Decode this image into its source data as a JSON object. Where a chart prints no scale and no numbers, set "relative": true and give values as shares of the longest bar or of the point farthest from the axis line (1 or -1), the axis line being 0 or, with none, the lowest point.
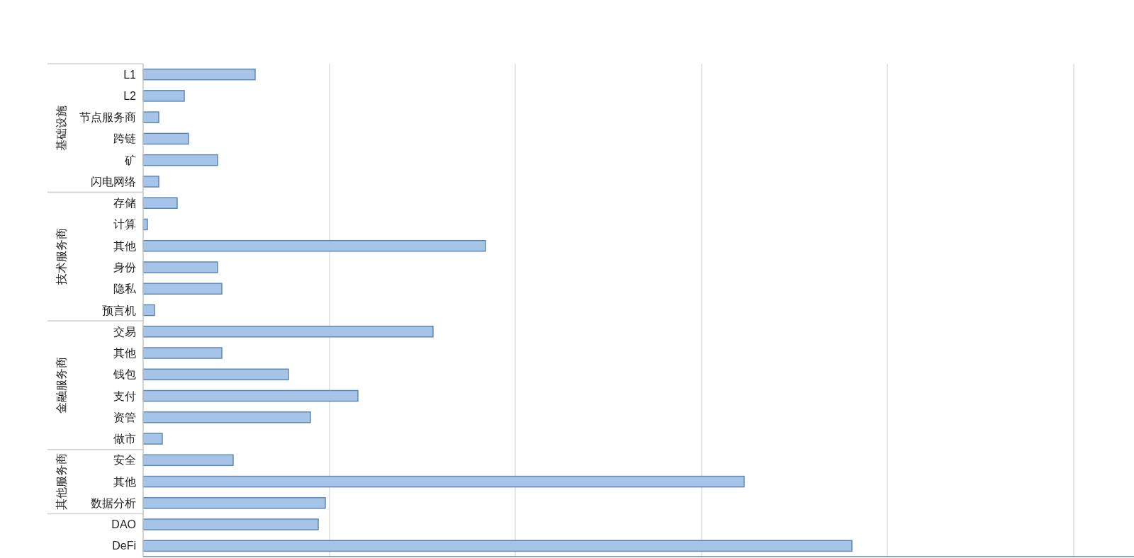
{
  "chart_data": {
    "type": "bar",
    "orientation": "horizontal",
    "relative": true,
    "stacked": true,
    "categories": [
      "L1",
      "L2",
      "节点服务商",
      "跨链",
      "矿",
      "闪电网络",
      "存储",
      "计算",
      "其他",
      "身份",
      "隐私",
      "预言机",
      "交易",
      "其他",
      "钱包",
      "支付",
      "资管",
      "做市",
      "安全",
      "其他",
      "数据分析",
      "DAO",
      "DeFi"
    ],
    "series": [
      {
        "color": "#a6c3e8",
        "values": [
          0.158,
          0.058,
          0.022,
          0.064,
          0.105,
          0.022,
          null,
          null,
          null,
          null,
          null,
          null,
          null,
          null,
          null,
          null,
          null,
          null,
          null,
          null,
          null,
          null,
          null
        ]
      },
      {
        "color": "#a6c3e8",
        "values": [
          null,
          null,
          null,
          null,
          null,
          null,
          0.048,
          0.006,
          0.483,
          0.105,
          0.111,
          0.016,
          null,
          null,
          null,
          null,
          null,
          null,
          null,
          null,
          null,
          null,
          null
        ]
      },
      {
        "color": "#a6c3e8",
        "values": [
          null,
          null,
          null,
          null,
          null,
          null,
          null,
          null,
          null,
          null,
          null,
          null,
          0.409,
          0.111,
          0.205,
          0.303,
          0.236,
          0.027,
          null,
          null,
          null,
          null,
          null
        ]
      },
      {
        "color": "#a6c3e8",
        "values": [
          null,
          null,
          null,
          null,
          null,
          null,
          null,
          null,
          null,
          null,
          null,
          null,
          null,
          null,
          null,
          null,
          null,
          null,
          0.127,
          0.848,
          0.257,
          null,
          null
        ]
      },
      {
        "color": "#a6c3e8",
        "values": [
          null,
          null,
          null,
          null,
          null,
          null,
          null,
          null,
          null,
          null,
          null,
          null,
          null,
          null,
          null,
          null,
          null,
          null,
          null,
          null,
          null,
          0.247,
          1
        ]
      }
    ],
    "annotations": [
      "基础设施",
      "技术服务商",
      "金融服务商",
      "其他服务商"
    ],
    "ref_lines": [
      {
        "axis": "x",
        "value": 0.263,
        "color": "#d2d5d9"
      },
      {
        "axis": "x",
        "value": 0.525,
        "color": "#d2d5d9"
      },
      {
        "axis": "x",
        "value": 0.788,
        "color": "#d2d5d9"
      },
      {
        "axis": "x",
        "value": 1.05,
        "color": "#d2d5d9"
      },
      {
        "axis": "x",
        "value": 1.313,
        "color": "#d2d5d9"
      }
    ]
  }
}
